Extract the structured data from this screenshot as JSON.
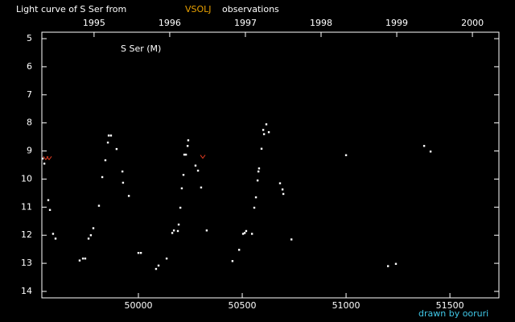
{
  "chart_data": {
    "type": "scatter",
    "title": {
      "prefix": "Light curve of S Ser from",
      "source": "VSOLJ",
      "suffix": "observations",
      "source_color": "#e8a000"
    },
    "annotation": "S Ser (M)",
    "credit": "drawn by ooruri",
    "credit_color": "#40c8e8",
    "xlim": [
      49535,
      51736
    ],
    "xticks": [
      50000,
      50500,
      51000,
      51500
    ],
    "x2lim": [
      1994.31,
      2000.35
    ],
    "x2ticks": [
      1995,
      1996,
      1997,
      1998,
      1999,
      2000
    ],
    "ylim": [
      4.77,
      14.23
    ],
    "y_inverted": true,
    "yticks": [
      5,
      6,
      7,
      8,
      9,
      10,
      11,
      12,
      13,
      14
    ],
    "series": [
      {
        "color": "#ffffff",
        "marker": "dot",
        "x": [
          49539,
          49547,
          49566,
          49574,
          49589,
          49601,
          49717,
          49733,
          49744,
          49760,
          49771,
          49783,
          49810,
          49826,
          49841,
          49853,
          49857,
          49868,
          49895,
          49923,
          49926,
          49954,
          50000,
          50012,
          50085,
          50097,
          50136,
          50163,
          50171,
          50190,
          50194,
          50202,
          50209,
          50217,
          50221,
          50229,
          50237,
          50240,
          50275,
          50287,
          50302,
          50329,
          50453,
          50485,
          50504,
          50512,
          50519,
          50547,
          50558,
          50566,
          50574,
          50578,
          50581,
          50593,
          50601,
          50605,
          50616,
          50628,
          50682,
          50694,
          50698,
          50737,
          51000,
          51202,
          51240,
          51376,
          51407
        ],
        "values": [
          9.27,
          9.45,
          10.75,
          11.1,
          11.95,
          12.12,
          12.9,
          12.83,
          12.83,
          12.12,
          12.0,
          11.75,
          10.95,
          9.93,
          9.33,
          8.7,
          8.45,
          8.45,
          8.93,
          9.73,
          10.13,
          10.6,
          12.63,
          12.63,
          13.2,
          13.08,
          12.83,
          11.92,
          11.83,
          11.85,
          11.62,
          11.02,
          10.33,
          9.85,
          9.13,
          9.13,
          8.82,
          8.62,
          9.52,
          9.7,
          10.3,
          11.83,
          12.92,
          12.52,
          11.95,
          11.92,
          11.85,
          11.95,
          11.02,
          10.65,
          10.05,
          9.73,
          9.62,
          8.92,
          8.25,
          8.4,
          8.05,
          8.33,
          10.15,
          10.37,
          10.53,
          12.15,
          9.15,
          13.1,
          13.02,
          8.82,
          9.02
        ]
      },
      {
        "color": "#e03a20",
        "marker": "v",
        "x": [
          49554,
          49570,
          50310
        ],
        "values": [
          9.25,
          9.25,
          9.2
        ]
      }
    ]
  }
}
